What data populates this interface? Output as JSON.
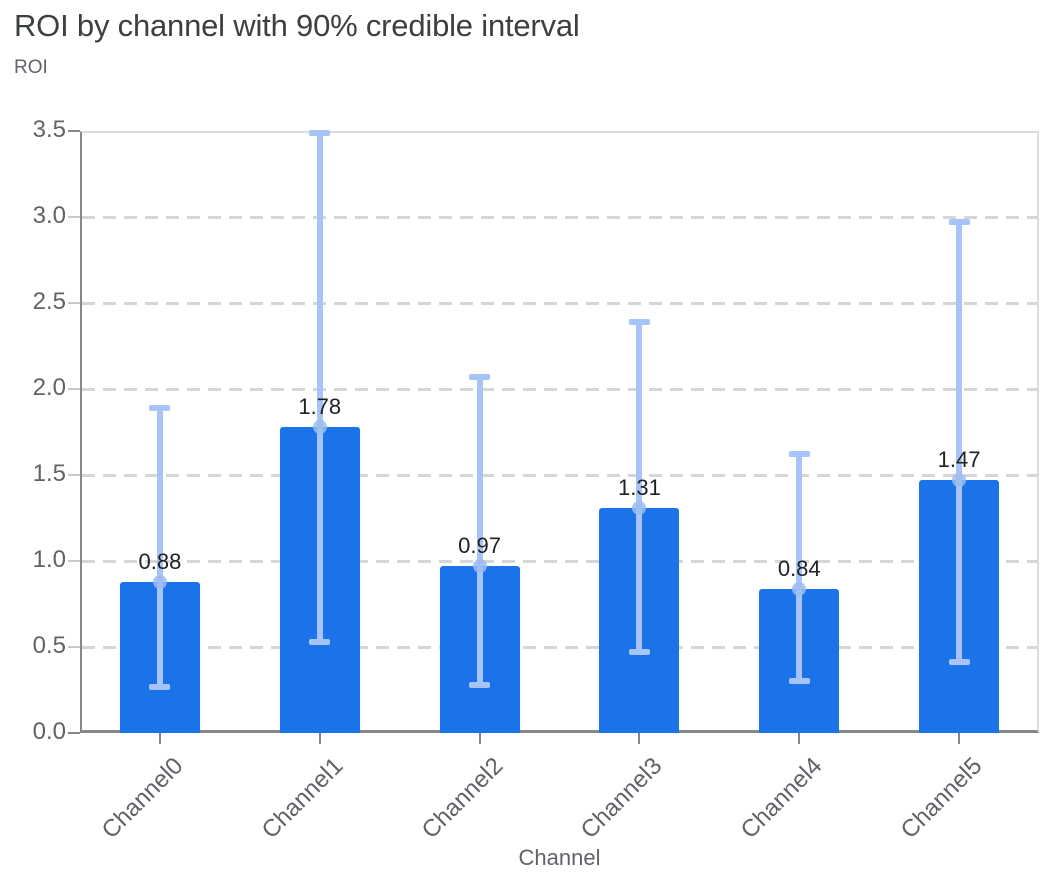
{
  "title": "ROI by channel with 90% credible interval",
  "y_axis_title": "ROI",
  "x_axis_title": "Channel",
  "colors": {
    "bar": "#1a73e8",
    "error_bar": "#a6c4f7",
    "mean_marker": "#9cbcf0",
    "gridline": "#d6d6d6",
    "plot_border_light": "#dadce0",
    "axis_line": "#85888b",
    "tick_label_text": "#5f6368",
    "title_text": "#3c4043",
    "value_label_text": "#202124",
    "background": "#ffffff"
  },
  "chart_data": {
    "type": "bar",
    "title": "ROI by channel with 90% credible interval",
    "xlabel": "Channel",
    "ylabel": "ROI",
    "categories": [
      "Channel0",
      "Channel1",
      "Channel2",
      "Channel3",
      "Channel4",
      "Channel5"
    ],
    "values": [
      0.88,
      1.78,
      0.97,
      1.31,
      0.84,
      1.47
    ],
    "value_labels": [
      "0.88",
      "1.78",
      "0.97",
      "1.31",
      "0.84",
      "1.47"
    ],
    "error_low": [
      0.27,
      0.53,
      0.28,
      0.47,
      0.3,
      0.41
    ],
    "error_high": [
      1.89,
      3.49,
      2.07,
      2.39,
      1.62,
      2.97
    ],
    "error_label": "90% credible interval",
    "y_ticks": [
      "0.0",
      "0.5",
      "1.0",
      "1.5",
      "2.0",
      "2.5",
      "3.0",
      "3.5"
    ],
    "y_tick_values": [
      0,
      0.5,
      1.0,
      1.5,
      2.0,
      2.5,
      3.0,
      3.5
    ],
    "ylim": [
      0,
      3.5
    ],
    "grid": true,
    "grid_style": "dashed",
    "legend": "none",
    "bar_label_position": "above"
  }
}
